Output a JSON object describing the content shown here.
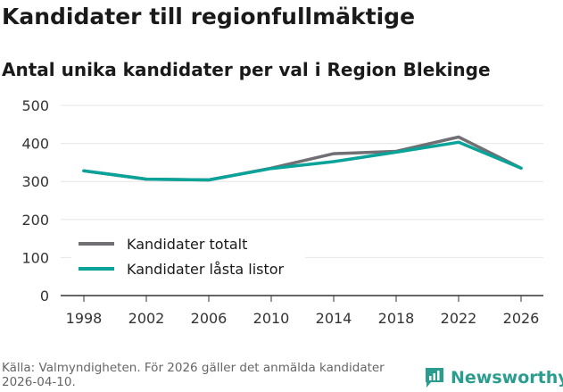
{
  "header": {
    "title": "Kandidater till regionfullmäktige",
    "subtitle": "Antal unika kandidater per val i Region Blekinge"
  },
  "footer": {
    "source": "Källa: Valmyndigheten. För 2026 gäller det anmälda kandidater 2026-04-10.",
    "brand": "Newsworthy"
  },
  "colors": {
    "total": "#6f6f74",
    "locked": "#0aa39a",
    "brand": "#2a9d8f",
    "grid": "#e6e6e6",
    "axis": "#333333"
  },
  "chart_data": {
    "type": "line",
    "title": "Kandidater till regionfullmäktige",
    "subtitle": "Antal unika kandidater per val i Region Blekinge",
    "xlabel": "",
    "ylabel": "",
    "categories": [
      "1998",
      "2002",
      "2006",
      "2010",
      "2014",
      "2018",
      "2022",
      "2026"
    ],
    "yticks": [
      "0",
      "100",
      "200",
      "300",
      "400",
      "500"
    ],
    "ylim": [
      0,
      500
    ],
    "grid": true,
    "legend_position": "bottom-left",
    "series": [
      {
        "name": "Kandidater totalt",
        "color_key": "total",
        "values": [
          328,
          306,
          304,
          335,
          373,
          379,
          417,
          335
        ]
      },
      {
        "name": "Kandidater låsta listor",
        "color_key": "locked",
        "values": [
          328,
          306,
          304,
          334,
          352,
          377,
          403,
          335
        ]
      }
    ]
  }
}
